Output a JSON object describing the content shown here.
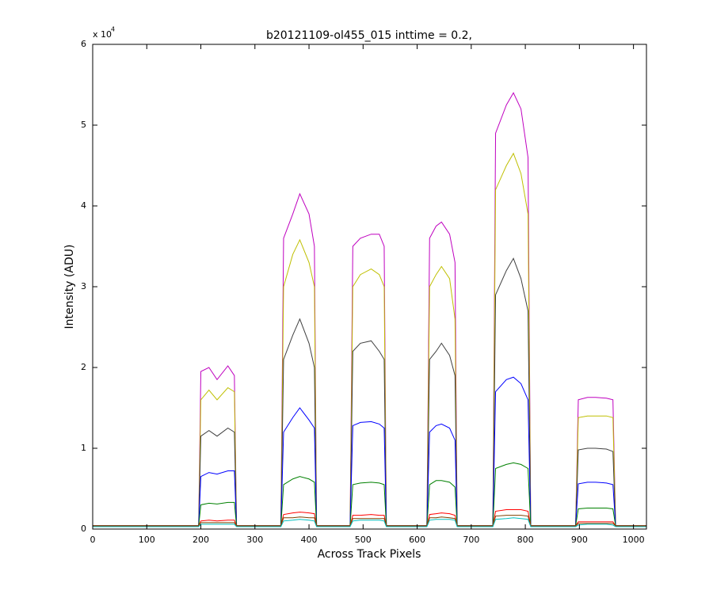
{
  "chart_data": {
    "type": "line",
    "title": "b20121109-ol455_015 inttime = 0.2,",
    "xlabel": "Across Track Pixels",
    "ylabel": "Intensity (ADU)",
    "exponent_label": {
      "base": "x 10",
      "power": "4"
    },
    "xlim": [
      0,
      1024
    ],
    "ylim": [
      0,
      6
    ],
    "xticks": [
      0,
      100,
      200,
      300,
      400,
      500,
      600,
      700,
      800,
      900,
      1000
    ],
    "yticks": [
      0,
      1,
      2,
      3,
      4,
      5,
      6
    ],
    "grid": false,
    "x": [
      0,
      196,
      200,
      215,
      230,
      250,
      262,
      266,
      348,
      353,
      370,
      383,
      400,
      410,
      414,
      476,
      481,
      495,
      515,
      530,
      539,
      543,
      618,
      623,
      635,
      645,
      660,
      670,
      674,
      740,
      745,
      765,
      778,
      792,
      805,
      810,
      893,
      898,
      915,
      930,
      950,
      962,
      967,
      1024
    ],
    "series": [
      {
        "name": "s1",
        "color": "#bf00bf",
        "values": [
          0.04,
          0.04,
          1.95,
          2.0,
          1.85,
          2.02,
          1.9,
          0.04,
          0.04,
          3.6,
          3.9,
          4.15,
          3.9,
          3.5,
          0.04,
          0.04,
          3.5,
          3.6,
          3.65,
          3.65,
          3.5,
          0.04,
          0.04,
          3.6,
          3.75,
          3.8,
          3.65,
          3.3,
          0.04,
          0.04,
          4.9,
          5.25,
          5.4,
          5.2,
          4.6,
          0.04,
          0.04,
          1.6,
          1.63,
          1.63,
          1.62,
          1.6,
          0.04,
          0.04
        ]
      },
      {
        "name": "s2",
        "color": "#bfbf00",
        "values": [
          0.04,
          0.04,
          1.6,
          1.72,
          1.6,
          1.75,
          1.7,
          0.04,
          0.04,
          3.0,
          3.4,
          3.58,
          3.3,
          3.0,
          0.04,
          0.04,
          3.0,
          3.15,
          3.22,
          3.15,
          3.0,
          0.04,
          0.04,
          3.0,
          3.15,
          3.25,
          3.1,
          2.6,
          0.04,
          0.04,
          4.2,
          4.5,
          4.65,
          4.4,
          3.9,
          0.04,
          0.04,
          1.38,
          1.4,
          1.4,
          1.4,
          1.38,
          0.04,
          0.04
        ]
      },
      {
        "name": "s3",
        "color": "#404040",
        "values": [
          0.04,
          0.04,
          1.15,
          1.22,
          1.15,
          1.25,
          1.2,
          0.04,
          0.04,
          2.1,
          2.4,
          2.6,
          2.3,
          2.0,
          0.04,
          0.04,
          2.2,
          2.3,
          2.33,
          2.2,
          2.1,
          0.04,
          0.04,
          2.1,
          2.2,
          2.3,
          2.15,
          1.9,
          0.04,
          0.04,
          2.9,
          3.2,
          3.35,
          3.1,
          2.7,
          0.04,
          0.04,
          0.98,
          1.0,
          1.0,
          0.99,
          0.96,
          0.04,
          0.04
        ]
      },
      {
        "name": "s4",
        "color": "#0000ff",
        "values": [
          0.04,
          0.04,
          0.65,
          0.7,
          0.68,
          0.72,
          0.72,
          0.04,
          0.04,
          1.2,
          1.38,
          1.5,
          1.35,
          1.25,
          0.04,
          0.04,
          1.28,
          1.32,
          1.33,
          1.3,
          1.25,
          0.04,
          0.04,
          1.2,
          1.28,
          1.3,
          1.25,
          1.1,
          0.04,
          0.04,
          1.7,
          1.85,
          1.88,
          1.8,
          1.6,
          0.04,
          0.04,
          0.56,
          0.58,
          0.58,
          0.57,
          0.55,
          0.04,
          0.04
        ]
      },
      {
        "name": "s5",
        "color": "#008000",
        "values": [
          0.04,
          0.04,
          0.3,
          0.32,
          0.31,
          0.33,
          0.33,
          0.04,
          0.04,
          0.55,
          0.62,
          0.65,
          0.62,
          0.58,
          0.04,
          0.04,
          0.55,
          0.57,
          0.58,
          0.57,
          0.55,
          0.04,
          0.04,
          0.55,
          0.6,
          0.6,
          0.58,
          0.52,
          0.04,
          0.04,
          0.75,
          0.8,
          0.82,
          0.8,
          0.75,
          0.04,
          0.04,
          0.25,
          0.26,
          0.26,
          0.26,
          0.25,
          0.04,
          0.04
        ]
      },
      {
        "name": "s6",
        "color": "#ff0000",
        "values": [
          0.04,
          0.04,
          0.1,
          0.11,
          0.1,
          0.11,
          0.11,
          0.04,
          0.04,
          0.18,
          0.2,
          0.21,
          0.2,
          0.19,
          0.04,
          0.04,
          0.17,
          0.17,
          0.18,
          0.17,
          0.17,
          0.04,
          0.04,
          0.18,
          0.19,
          0.2,
          0.19,
          0.17,
          0.04,
          0.04,
          0.22,
          0.24,
          0.24,
          0.24,
          0.22,
          0.04,
          0.04,
          0.09,
          0.09,
          0.09,
          0.09,
          0.09,
          0.04,
          0.04
        ]
      },
      {
        "name": "s7",
        "color": "#804000",
        "values": [
          0.04,
          0.04,
          0.08,
          0.08,
          0.08,
          0.08,
          0.08,
          0.04,
          0.04,
          0.14,
          0.14,
          0.15,
          0.14,
          0.14,
          0.04,
          0.04,
          0.13,
          0.13,
          0.13,
          0.13,
          0.13,
          0.04,
          0.04,
          0.14,
          0.14,
          0.15,
          0.14,
          0.13,
          0.04,
          0.04,
          0.16,
          0.17,
          0.17,
          0.17,
          0.16,
          0.04,
          0.04,
          0.07,
          0.07,
          0.07,
          0.07,
          0.07,
          0.04,
          0.04
        ]
      },
      {
        "name": "s8",
        "color": "#00bfbf",
        "values": [
          0.03,
          0.03,
          0.06,
          0.06,
          0.06,
          0.06,
          0.06,
          0.03,
          0.03,
          0.1,
          0.11,
          0.12,
          0.11,
          0.1,
          0.03,
          0.03,
          0.1,
          0.11,
          0.11,
          0.11,
          0.1,
          0.03,
          0.03,
          0.11,
          0.12,
          0.12,
          0.12,
          0.11,
          0.03,
          0.03,
          0.12,
          0.13,
          0.14,
          0.13,
          0.12,
          0.03,
          0.03,
          0.05,
          0.06,
          0.06,
          0.06,
          0.05,
          0.03,
          0.03
        ]
      }
    ]
  }
}
